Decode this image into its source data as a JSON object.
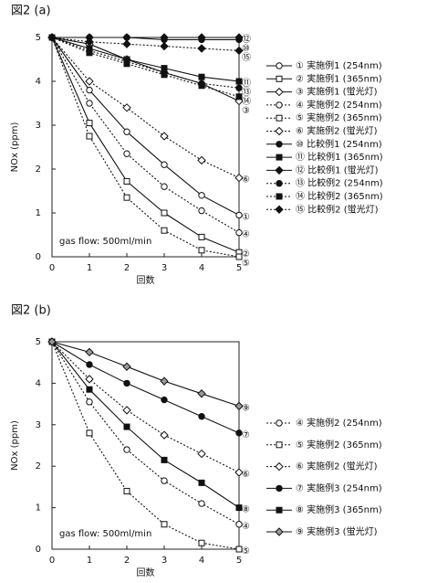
{
  "chart_data": [
    {
      "type": "line",
      "title": "図2 (a)",
      "xlabel": "回数",
      "ylabel": "NOx (ppm)",
      "annotation": "gas flow: 500ml/min",
      "x": [
        0,
        1,
        2,
        3,
        4,
        5
      ],
      "xlim": [
        0,
        5
      ],
      "ylim": [
        0,
        5
      ],
      "xticks": [
        0,
        1,
        2,
        3,
        4,
        5
      ],
      "yticks": [
        0,
        1,
        2,
        3,
        4,
        5
      ],
      "series": [
        {
          "name": "① 実施例1 (254nm)",
          "end_label": "①",
          "color": "#111",
          "line": "solid",
          "marker": "circle-open",
          "values": [
            5,
            3.8,
            2.85,
            2.1,
            1.4,
            0.95
          ]
        },
        {
          "name": "② 実施例1 (365nm)",
          "end_label": "②",
          "color": "#111",
          "line": "solid",
          "marker": "square-open",
          "values": [
            5,
            3.05,
            1.72,
            1.0,
            0.45,
            0.1
          ]
        },
        {
          "name": "③ 実施例1 (蛍光灯)",
          "end_label": "③",
          "color": "#111",
          "line": "solid",
          "marker": "diamond-open",
          "values": [
            5,
            4.85,
            4.5,
            4.2,
            3.95,
            3.55
          ]
        },
        {
          "name": "④ 実施例2 (254nm)",
          "end_label": "④",
          "color": "#111",
          "line": "dotted",
          "marker": "circle-open",
          "values": [
            5,
            3.5,
            2.35,
            1.6,
            1.05,
            0.55
          ]
        },
        {
          "name": "⑤ 実施例2 (365nm)",
          "end_label": "⑤",
          "color": "#111",
          "line": "dotted",
          "marker": "square-open",
          "values": [
            5,
            2.75,
            1.35,
            0.6,
            0.15,
            0
          ]
        },
        {
          "name": "⑥ 実施例2 (蛍光灯)",
          "end_label": "⑥",
          "color": "#111",
          "line": "dotted",
          "marker": "diamond-open",
          "values": [
            5,
            4.0,
            3.4,
            2.75,
            2.2,
            1.8
          ]
        },
        {
          "name": "⑩ 比較例1 (254nm)",
          "end_label": "⑩",
          "color": "#111",
          "line": "solid",
          "marker": "circle-filled",
          "values": [
            5,
            5,
            5,
            4.95,
            4.95,
            4.95
          ]
        },
        {
          "name": "⑪ 比較例1 (365nm)",
          "end_label": "⑪",
          "color": "#111",
          "line": "solid",
          "marker": "square-filled",
          "values": [
            5,
            4.75,
            4.5,
            4.3,
            4.1,
            4.0
          ]
        },
        {
          "name": "⑫ 比較例1 (蛍光灯)",
          "end_label": "⑫",
          "color": "#111",
          "line": "solid",
          "marker": "diamond-filled",
          "values": [
            5,
            5,
            5,
            5,
            5,
            5
          ]
        },
        {
          "name": "⑬ 比較例2 (254nm)",
          "end_label": "⑬",
          "color": "#111",
          "line": "dotted",
          "marker": "circle-filled",
          "values": [
            5,
            4.7,
            4.45,
            4.2,
            3.95,
            3.85
          ]
        },
        {
          "name": "⑭ 比較例2 (365nm)",
          "end_label": "⑭",
          "color": "#111",
          "line": "dotted",
          "marker": "square-filled",
          "values": [
            5,
            4.65,
            4.4,
            4.15,
            3.9,
            3.65
          ]
        },
        {
          "name": "⑮ 比較例2 (蛍光灯)",
          "end_label": "⑮",
          "color": "#111",
          "line": "dotted",
          "marker": "diamond-filled",
          "values": [
            5,
            4.9,
            4.85,
            4.8,
            4.75,
            4.7
          ]
        }
      ]
    },
    {
      "type": "line",
      "title": "図2 (b)",
      "xlabel": "回数",
      "ylabel": "NOx (ppm)",
      "annotation": "gas flow: 500ml/min",
      "x": [
        0,
        1,
        2,
        3,
        4,
        5
      ],
      "xlim": [
        0,
        5
      ],
      "ylim": [
        0,
        5
      ],
      "xticks": [
        0,
        1,
        2,
        3,
        4,
        5
      ],
      "yticks": [
        0,
        1,
        2,
        3,
        4,
        5
      ],
      "series": [
        {
          "name": "④ 実施例2 (254nm)",
          "end_label": "④",
          "color": "#111",
          "line": "dotted",
          "marker": "circle-open",
          "values": [
            5,
            3.55,
            2.4,
            1.65,
            1.1,
            0.6
          ]
        },
        {
          "name": "⑤ 実施例2 (365nm)",
          "end_label": "⑤",
          "color": "#111",
          "line": "dotted",
          "marker": "square-open",
          "values": [
            5,
            2.8,
            1.4,
            0.6,
            0.15,
            0
          ]
        },
        {
          "name": "⑥ 実施例2 (蛍光灯)",
          "end_label": "⑥",
          "color": "#111",
          "line": "dotted",
          "marker": "diamond-open",
          "values": [
            5,
            4.1,
            3.35,
            2.75,
            2.3,
            1.85
          ]
        },
        {
          "name": "⑦ 実施例3 (254nm)",
          "end_label": "⑦",
          "color": "#111",
          "line": "solid",
          "marker": "circle-filled",
          "values": [
            5,
            4.45,
            4.0,
            3.6,
            3.2,
            2.8
          ]
        },
        {
          "name": "⑧ 実施例3 (365nm)",
          "end_label": "⑧",
          "color": "#111",
          "line": "solid",
          "marker": "square-filled",
          "values": [
            5,
            3.85,
            2.95,
            2.15,
            1.6,
            1.0
          ]
        },
        {
          "name": "⑨ 実施例3 (蛍光灯)",
          "end_label": "⑨",
          "color": "#111",
          "line": "solid",
          "marker": "diamond-gray",
          "values": [
            5,
            4.75,
            4.4,
            4.05,
            3.75,
            3.45
          ]
        }
      ]
    }
  ]
}
